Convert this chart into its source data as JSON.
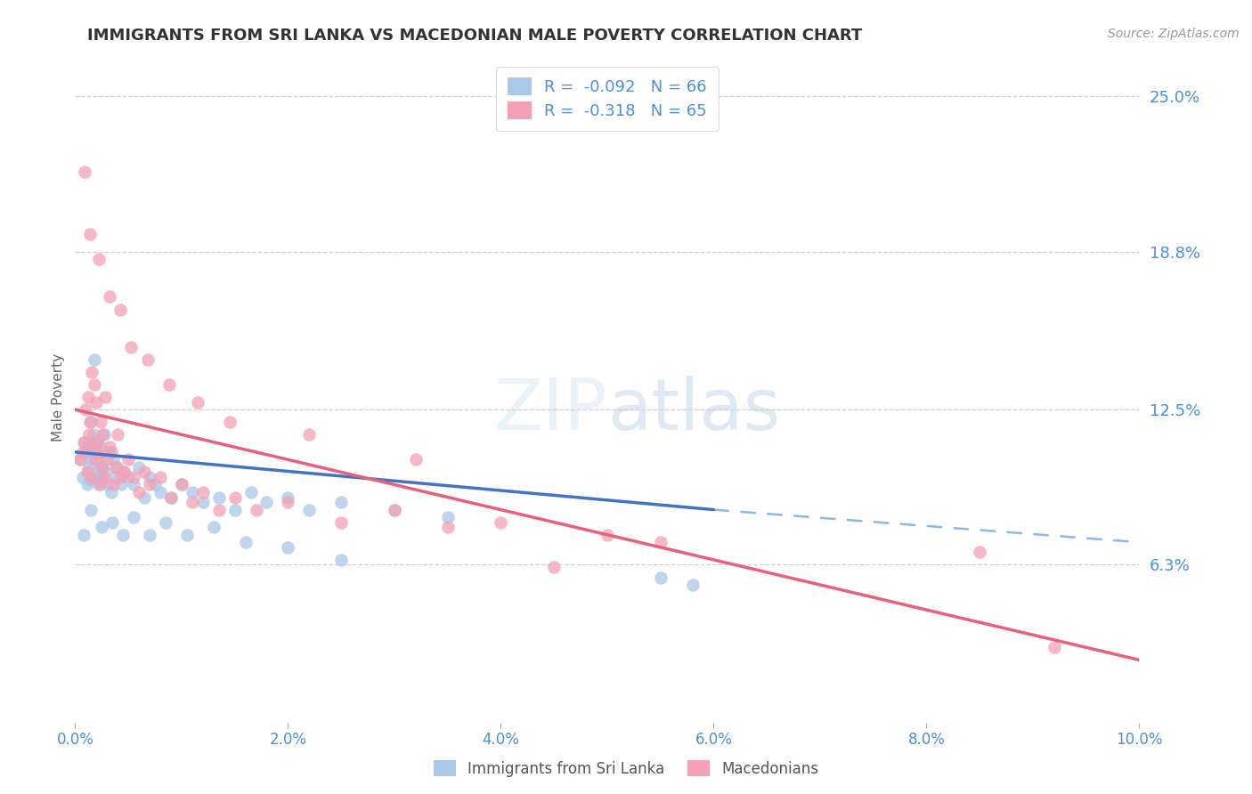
{
  "title": "IMMIGRANTS FROM SRI LANKA VS MACEDONIAN MALE POVERTY CORRELATION CHART",
  "source": "Source: ZipAtlas.com",
  "ylabel": "Male Poverty",
  "xlim": [
    0.0,
    10.0
  ],
  "ylim": [
    0.0,
    26.0
  ],
  "ytick_vals": [
    6.3,
    12.5,
    18.8,
    25.0
  ],
  "ytick_labels": [
    "6.3%",
    "12.5%",
    "18.8%",
    "25.0%"
  ],
  "xticks": [
    0.0,
    2.0,
    4.0,
    6.0,
    8.0,
    10.0
  ],
  "xtick_labels": [
    "0.0%",
    "2.0%",
    "4.0%",
    "6.0%",
    "8.0%",
    "10.0%"
  ],
  "legend1_label": "R =  -0.092   N = 66",
  "legend2_label": "R =  -0.318   N = 65",
  "color_sri_lanka": "#A8C8E8",
  "color_macedonian": "#F4A0B5",
  "color_line_sri_lanka": "#4472C4",
  "color_line_macedonian": "#E8607A",
  "color_dashed_line": "#8BB8E8",
  "legend_bottom_label1": "Immigrants from Sri Lanka",
  "legend_bottom_label2": "Macedonians",
  "background_color": "#FFFFFF",
  "title_color": "#333333",
  "axis_label_color": "#666666",
  "tick_label_color": "#4A90D9",
  "source_color": "#999999",
  "sri_lanka_x": [
    0.05,
    0.07,
    0.09,
    0.1,
    0.11,
    0.12,
    0.13,
    0.14,
    0.15,
    0.16,
    0.17,
    0.18,
    0.19,
    0.2,
    0.21,
    0.22,
    0.23,
    0.24,
    0.25,
    0.26,
    0.27,
    0.28,
    0.3,
    0.32,
    0.34,
    0.36,
    0.38,
    0.4,
    0.43,
    0.46,
    0.5,
    0.55,
    0.6,
    0.65,
    0.7,
    0.75,
    0.8,
    0.9,
    1.0,
    1.1,
    1.2,
    1.35,
    1.5,
    1.65,
    1.8,
    2.0,
    2.2,
    2.5,
    3.0,
    3.5,
    0.08,
    0.15,
    0.25,
    0.35,
    0.45,
    0.55,
    0.7,
    0.85,
    1.05,
    1.3,
    1.6,
    2.0,
    2.5,
    5.5,
    5.8,
    0.18
  ],
  "sri_lanka_y": [
    10.5,
    9.8,
    11.2,
    10.8,
    9.5,
    11.0,
    10.2,
    9.7,
    12.0,
    10.5,
    11.5,
    9.8,
    10.8,
    11.2,
    10.0,
    9.5,
    10.5,
    11.0,
    9.8,
    10.2,
    11.5,
    10.0,
    9.5,
    10.8,
    9.2,
    10.5,
    9.8,
    10.2,
    9.5,
    10.0,
    9.8,
    9.5,
    10.2,
    9.0,
    9.8,
    9.5,
    9.2,
    9.0,
    9.5,
    9.2,
    8.8,
    9.0,
    8.5,
    9.2,
    8.8,
    9.0,
    8.5,
    8.8,
    8.5,
    8.2,
    7.5,
    8.5,
    7.8,
    8.0,
    7.5,
    8.2,
    7.5,
    8.0,
    7.5,
    7.8,
    7.2,
    7.0,
    6.5,
    5.8,
    5.5,
    14.5
  ],
  "macedonian_x": [
    0.05,
    0.07,
    0.08,
    0.1,
    0.11,
    0.12,
    0.13,
    0.14,
    0.15,
    0.16,
    0.17,
    0.18,
    0.19,
    0.2,
    0.21,
    0.22,
    0.23,
    0.24,
    0.25,
    0.26,
    0.27,
    0.28,
    0.3,
    0.32,
    0.34,
    0.36,
    0.38,
    0.4,
    0.43,
    0.46,
    0.5,
    0.55,
    0.6,
    0.65,
    0.7,
    0.8,
    0.9,
    1.0,
    1.1,
    1.2,
    1.35,
    1.5,
    1.7,
    2.0,
    2.5,
    3.0,
    3.5,
    4.0,
    5.0,
    5.5,
    0.09,
    0.14,
    0.22,
    0.32,
    0.42,
    0.52,
    0.68,
    0.88,
    1.15,
    1.45,
    2.2,
    3.2,
    4.5,
    8.5,
    9.2
  ],
  "macedonian_y": [
    10.5,
    10.8,
    11.2,
    12.5,
    10.0,
    13.0,
    11.5,
    12.0,
    9.8,
    14.0,
    11.0,
    13.5,
    10.5,
    12.8,
    11.2,
    10.8,
    9.5,
    12.0,
    10.2,
    11.5,
    9.8,
    13.0,
    10.5,
    11.0,
    10.8,
    9.5,
    10.2,
    11.5,
    9.8,
    10.0,
    10.5,
    9.8,
    9.2,
    10.0,
    9.5,
    9.8,
    9.0,
    9.5,
    8.8,
    9.2,
    8.5,
    9.0,
    8.5,
    8.8,
    8.0,
    8.5,
    7.8,
    8.0,
    7.5,
    7.2,
    22.0,
    19.5,
    18.5,
    17.0,
    16.5,
    15.0,
    14.5,
    13.5,
    12.8,
    12.0,
    11.5,
    10.5,
    6.2,
    6.8,
    3.0
  ],
  "sri_line_x0": 0.0,
  "sri_line_x1": 6.0,
  "sri_line_y0": 10.8,
  "sri_line_y1": 8.5,
  "mac_line_x0": 0.0,
  "mac_line_x1": 10.0,
  "mac_line_y0": 12.5,
  "mac_line_y1": 2.5,
  "dash_line_x0": 6.0,
  "dash_line_x1": 10.0,
  "dash_line_y0": 8.5,
  "dash_line_y1": 7.2
}
